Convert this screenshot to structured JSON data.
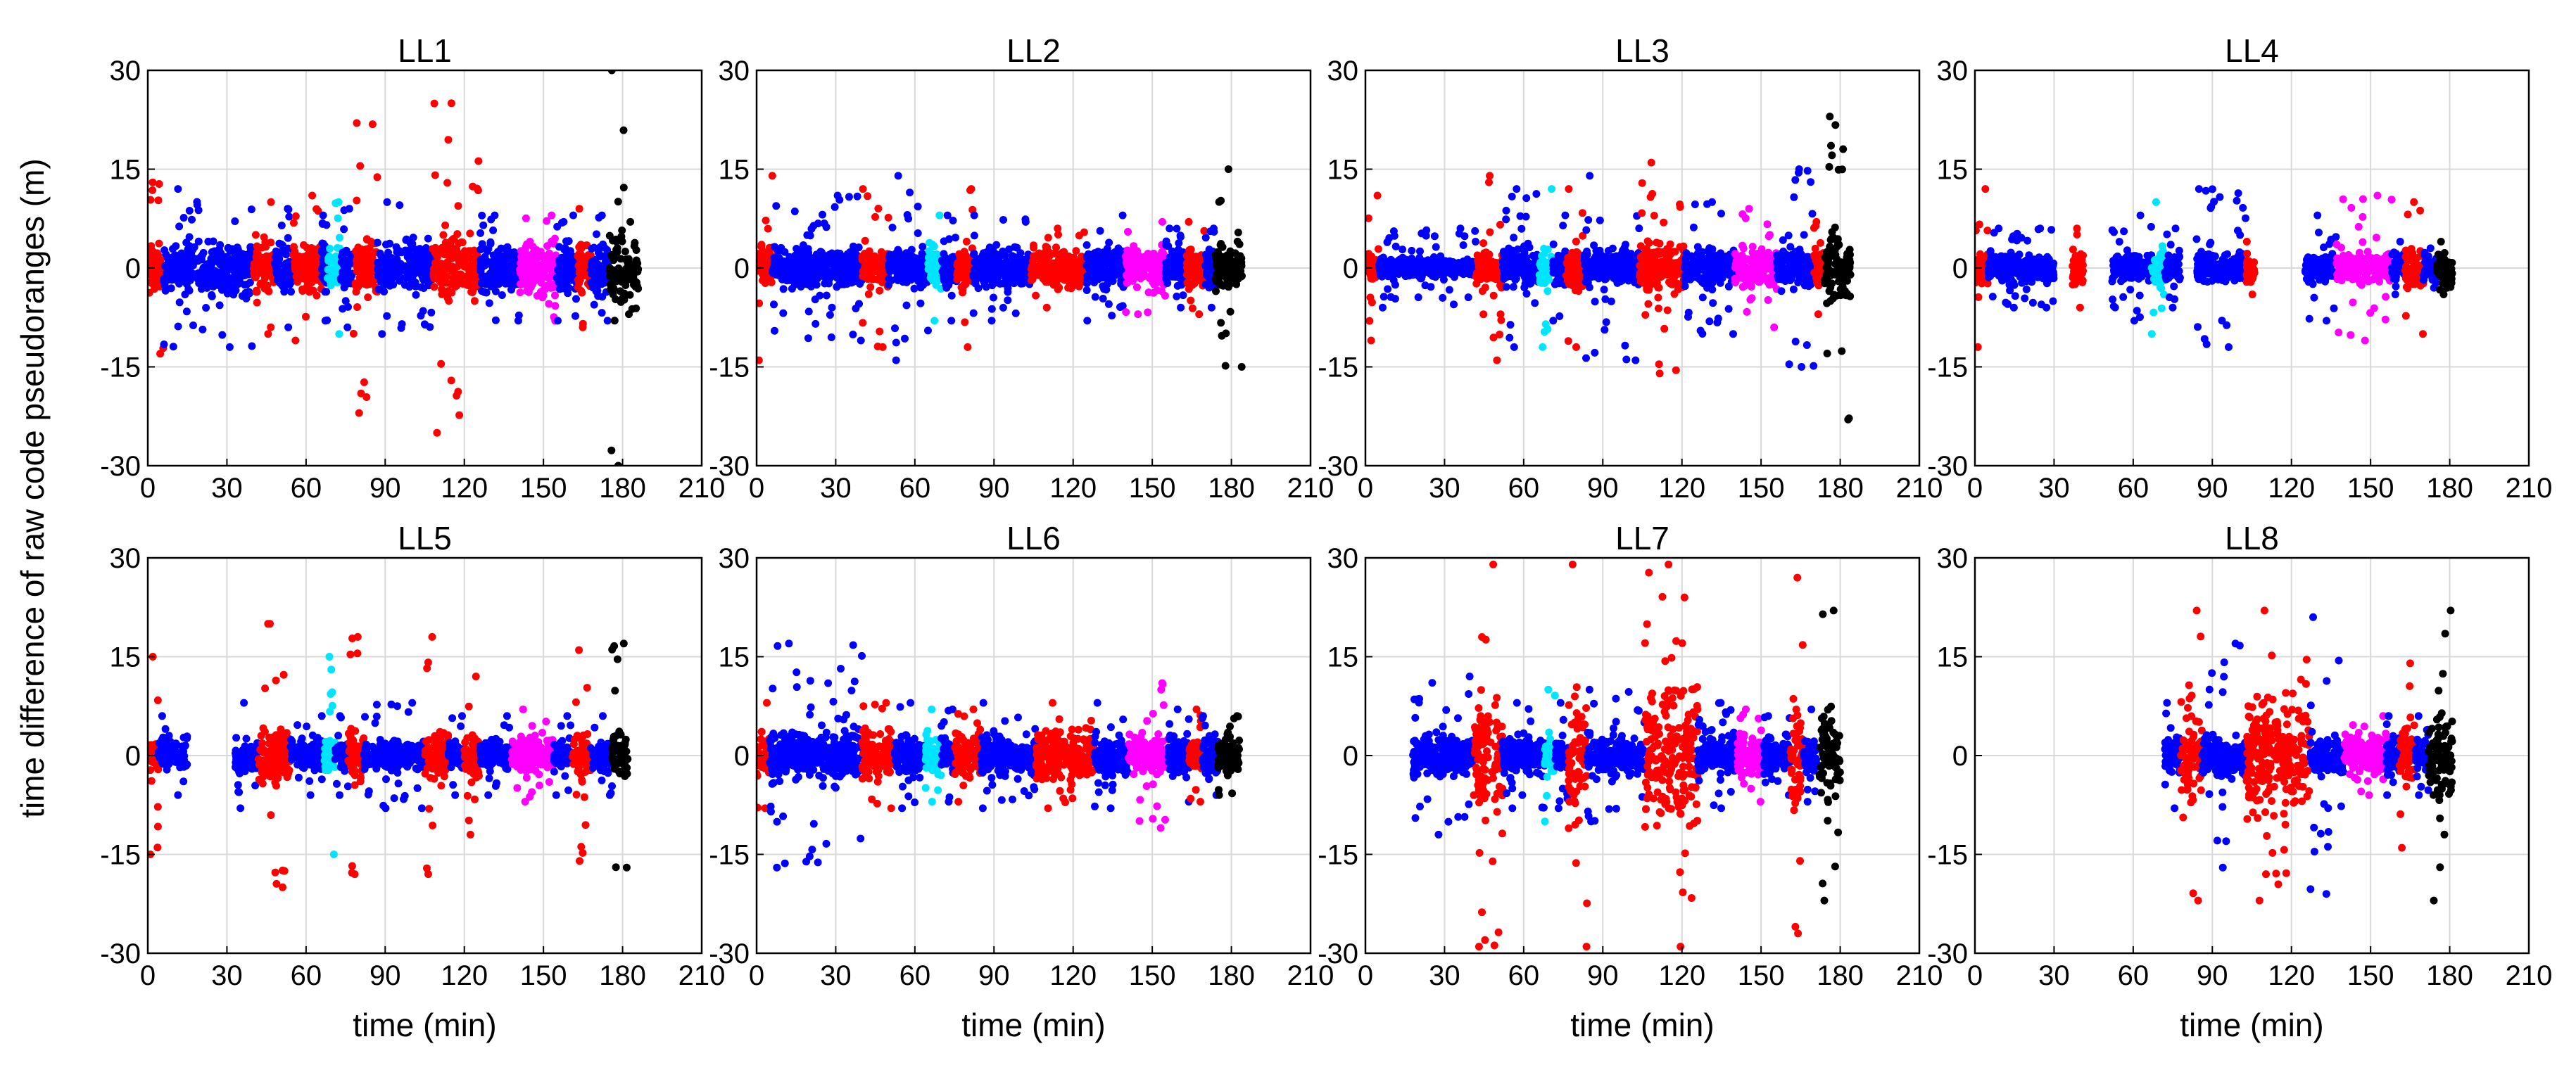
{
  "chart_data": {
    "type": "scatter",
    "ylabel": "time difference of raw code pseudoranges (m)",
    "xlabel": "time (min)",
    "xlim": [
      0,
      210
    ],
    "ylim": [
      -30,
      30
    ],
    "xticks": [
      0,
      30,
      60,
      90,
      120,
      150,
      180,
      210
    ],
    "yticks": [
      30,
      15,
      0,
      -15,
      -30
    ],
    "grid": true,
    "colors": {
      "blue": "#0000ff",
      "red": "#ff0000",
      "cyan": "#00e5ff",
      "magenta": "#ff00ff",
      "black": "#000000"
    },
    "panels": [
      {
        "title": "LL1",
        "segments": [
          {
            "start": 0,
            "end": 6,
            "color": "red",
            "core": 5,
            "spike": 13
          },
          {
            "start": 6,
            "end": 40,
            "color": "blue",
            "core": 5,
            "spike": 12
          },
          {
            "start": 40,
            "end": 48,
            "color": "red",
            "core": 5,
            "spike": 10
          },
          {
            "start": 48,
            "end": 55,
            "color": "blue",
            "core": 5,
            "spike": 9
          },
          {
            "start": 55,
            "end": 66,
            "color": "red",
            "core": 5,
            "spike": 11
          },
          {
            "start": 66,
            "end": 68,
            "color": "blue",
            "core": 5,
            "spike": 8
          },
          {
            "start": 68,
            "end": 73,
            "color": "cyan",
            "core": 4,
            "spike": 10
          },
          {
            "start": 73,
            "end": 78,
            "color": "blue",
            "core": 5,
            "spike": 9
          },
          {
            "start": 78,
            "end": 87,
            "color": "red",
            "core": 6,
            "spike": 22
          },
          {
            "start": 87,
            "end": 108,
            "color": "blue",
            "core": 5,
            "spike": 10
          },
          {
            "start": 108,
            "end": 126,
            "color": "red",
            "core": 7,
            "spike": 25
          },
          {
            "start": 126,
            "end": 141,
            "color": "blue",
            "core": 5,
            "spike": 8
          },
          {
            "start": 141,
            "end": 155,
            "color": "magenta",
            "core": 5,
            "spike": 8
          },
          {
            "start": 155,
            "end": 163,
            "color": "blue",
            "core": 5,
            "spike": 8
          },
          {
            "start": 163,
            "end": 168,
            "color": "red",
            "core": 5,
            "spike": 9
          },
          {
            "start": 168,
            "end": 175,
            "color": "blue",
            "core": 5,
            "spike": 8
          },
          {
            "start": 175,
            "end": 181,
            "color": "black",
            "core": 10,
            "spike": 30
          },
          {
            "start": 181,
            "end": 186,
            "color": "black",
            "core": 5,
            "spike": 7
          }
        ]
      },
      {
        "title": "LL2",
        "segments": [
          {
            "start": 0,
            "end": 6,
            "color": "red",
            "core": 5,
            "spike": 14
          },
          {
            "start": 6,
            "end": 40,
            "color": "blue",
            "core": 4,
            "spike": 11
          },
          {
            "start": 40,
            "end": 50,
            "color": "red",
            "core": 4,
            "spike": 12
          },
          {
            "start": 50,
            "end": 65,
            "color": "blue",
            "core": 4,
            "spike": 14
          },
          {
            "start": 65,
            "end": 70,
            "color": "cyan",
            "core": 4,
            "spike": 8
          },
          {
            "start": 70,
            "end": 76,
            "color": "blue",
            "core": 4,
            "spike": 8
          },
          {
            "start": 76,
            "end": 82,
            "color": "red",
            "core": 4,
            "spike": 12
          },
          {
            "start": 82,
            "end": 104,
            "color": "blue",
            "core": 4,
            "spike": 8
          },
          {
            "start": 104,
            "end": 125,
            "color": "red",
            "core": 4,
            "spike": 6
          },
          {
            "start": 125,
            "end": 140,
            "color": "blue",
            "core": 4,
            "spike": 8
          },
          {
            "start": 140,
            "end": 155,
            "color": "magenta",
            "core": 4,
            "spike": 7
          },
          {
            "start": 155,
            "end": 163,
            "color": "blue",
            "core": 4,
            "spike": 6
          },
          {
            "start": 163,
            "end": 170,
            "color": "red",
            "core": 4,
            "spike": 7
          },
          {
            "start": 170,
            "end": 174,
            "color": "blue",
            "core": 4,
            "spike": 6
          },
          {
            "start": 174,
            "end": 184,
            "color": "black",
            "core": 5,
            "spike": 15
          }
        ]
      },
      {
        "title": "LL3",
        "segments": [
          {
            "start": 0,
            "end": 5,
            "color": "red",
            "core": 3,
            "spike": 11
          },
          {
            "start": 5,
            "end": 42,
            "color": "blue",
            "core": 2,
            "spike": 6
          },
          {
            "start": 42,
            "end": 52,
            "color": "red",
            "core": 4,
            "spike": 14
          },
          {
            "start": 52,
            "end": 66,
            "color": "blue",
            "core": 4,
            "spike": 12
          },
          {
            "start": 66,
            "end": 71,
            "color": "cyan",
            "core": 4,
            "spike": 12
          },
          {
            "start": 71,
            "end": 76,
            "color": "blue",
            "core": 4,
            "spike": 8
          },
          {
            "start": 76,
            "end": 83,
            "color": "red",
            "core": 5,
            "spike": 12
          },
          {
            "start": 83,
            "end": 104,
            "color": "blue",
            "core": 4,
            "spike": 14
          },
          {
            "start": 104,
            "end": 121,
            "color": "red",
            "core": 5,
            "spike": 16
          },
          {
            "start": 121,
            "end": 140,
            "color": "blue",
            "core": 4,
            "spike": 10
          },
          {
            "start": 140,
            "end": 156,
            "color": "magenta",
            "core": 4,
            "spike": 9
          },
          {
            "start": 156,
            "end": 170,
            "color": "blue",
            "core": 4,
            "spike": 15
          },
          {
            "start": 170,
            "end": 174,
            "color": "red",
            "core": 4,
            "spike": 7
          },
          {
            "start": 174,
            "end": 184,
            "color": "black",
            "core": 7,
            "spike": 23
          }
        ]
      },
      {
        "title": "LL4",
        "segments": [
          {
            "start": 0,
            "end": 5,
            "color": "red",
            "core": 4,
            "spike": 12
          },
          {
            "start": 5,
            "end": 24,
            "color": "blue",
            "core": 3,
            "spike": 6
          },
          {
            "start": 24,
            "end": 30,
            "color": "blue",
            "core": 3,
            "spike": 6
          },
          {
            "start": 37,
            "end": 41,
            "color": "red",
            "core": 3,
            "spike": 6
          },
          {
            "start": 52,
            "end": 67,
            "color": "blue",
            "core": 3,
            "spike": 8
          },
          {
            "start": 67,
            "end": 72,
            "color": "cyan",
            "core": 4,
            "spike": 10
          },
          {
            "start": 72,
            "end": 78,
            "color": "blue",
            "core": 3,
            "spike": 6
          },
          {
            "start": 84,
            "end": 103,
            "color": "blue",
            "core": 3,
            "spike": 12
          },
          {
            "start": 103,
            "end": 106,
            "color": "red",
            "core": 3,
            "spike": 4
          },
          {
            "start": 125,
            "end": 137,
            "color": "blue",
            "core": 3,
            "spike": 8
          },
          {
            "start": 137,
            "end": 158,
            "color": "magenta",
            "core": 3,
            "spike": 11
          },
          {
            "start": 158,
            "end": 163,
            "color": "blue",
            "core": 3,
            "spike": 4
          },
          {
            "start": 163,
            "end": 170,
            "color": "red",
            "core": 4,
            "spike": 10
          },
          {
            "start": 170,
            "end": 175,
            "color": "blue",
            "core": 3,
            "spike": 3
          },
          {
            "start": 175,
            "end": 181,
            "color": "black",
            "core": 3,
            "spike": 4
          }
        ]
      },
      {
        "title": "LL5",
        "segments": [
          {
            "start": 0,
            "end": 4,
            "color": "red",
            "core": 3,
            "spike": 15
          },
          {
            "start": 4,
            "end": 15,
            "color": "blue",
            "core": 3,
            "spike": 6
          },
          {
            "start": 33,
            "end": 42,
            "color": "blue",
            "core": 3,
            "spike": 8
          },
          {
            "start": 42,
            "end": 54,
            "color": "red",
            "core": 6,
            "spike": 20
          },
          {
            "start": 54,
            "end": 67,
            "color": "blue",
            "core": 3,
            "spike": 6
          },
          {
            "start": 67,
            "end": 71,
            "color": "cyan",
            "core": 3,
            "spike": 15
          },
          {
            "start": 71,
            "end": 76,
            "color": "blue",
            "core": 3,
            "spike": 6
          },
          {
            "start": 76,
            "end": 82,
            "color": "red",
            "core": 5,
            "spike": 18
          },
          {
            "start": 82,
            "end": 105,
            "color": "blue",
            "core": 3,
            "spike": 8
          },
          {
            "start": 105,
            "end": 114,
            "color": "red",
            "core": 5,
            "spike": 18
          },
          {
            "start": 114,
            "end": 120,
            "color": "blue",
            "core": 3,
            "spike": 6
          },
          {
            "start": 120,
            "end": 126,
            "color": "red",
            "core": 5,
            "spike": 12
          },
          {
            "start": 126,
            "end": 138,
            "color": "blue",
            "core": 3,
            "spike": 6
          },
          {
            "start": 138,
            "end": 154,
            "color": "magenta",
            "core": 4,
            "spike": 7
          },
          {
            "start": 154,
            "end": 161,
            "color": "blue",
            "core": 3,
            "spike": 6
          },
          {
            "start": 161,
            "end": 168,
            "color": "red",
            "core": 5,
            "spike": 16
          },
          {
            "start": 168,
            "end": 176,
            "color": "blue",
            "core": 3,
            "spike": 6
          },
          {
            "start": 176,
            "end": 182,
            "color": "black",
            "core": 5,
            "spike": 17
          }
        ]
      },
      {
        "title": "LL6",
        "segments": [
          {
            "start": 0,
            "end": 5,
            "color": "red",
            "core": 4,
            "spike": 8
          },
          {
            "start": 5,
            "end": 40,
            "color": "blue",
            "core": 5,
            "spike": 17
          },
          {
            "start": 40,
            "end": 52,
            "color": "red",
            "core": 5,
            "spike": 8
          },
          {
            "start": 52,
            "end": 64,
            "color": "blue",
            "core": 4,
            "spike": 8
          },
          {
            "start": 64,
            "end": 70,
            "color": "cyan",
            "core": 4,
            "spike": 7
          },
          {
            "start": 70,
            "end": 75,
            "color": "blue",
            "core": 4,
            "spike": 7
          },
          {
            "start": 75,
            "end": 85,
            "color": "red",
            "core": 5,
            "spike": 7
          },
          {
            "start": 85,
            "end": 106,
            "color": "blue",
            "core": 4,
            "spike": 8
          },
          {
            "start": 106,
            "end": 128,
            "color": "red",
            "core": 5,
            "spike": 8
          },
          {
            "start": 128,
            "end": 141,
            "color": "blue",
            "core": 4,
            "spike": 8
          },
          {
            "start": 141,
            "end": 156,
            "color": "magenta",
            "core": 4,
            "spike": 11
          },
          {
            "start": 156,
            "end": 164,
            "color": "blue",
            "core": 4,
            "spike": 7
          },
          {
            "start": 164,
            "end": 169,
            "color": "red",
            "core": 4,
            "spike": 7
          },
          {
            "start": 169,
            "end": 175,
            "color": "blue",
            "core": 4,
            "spike": 6
          },
          {
            "start": 175,
            "end": 183,
            "color": "black",
            "core": 4,
            "spike": 6
          }
        ]
      },
      {
        "title": "LL7",
        "segments": [
          {
            "start": 18,
            "end": 41,
            "color": "blue",
            "core": 4,
            "spike": 12
          },
          {
            "start": 41,
            "end": 52,
            "color": "red",
            "core": 15,
            "spike": 29
          },
          {
            "start": 52,
            "end": 68,
            "color": "blue",
            "core": 4,
            "spike": 8
          },
          {
            "start": 68,
            "end": 72,
            "color": "cyan",
            "core": 4,
            "spike": 10
          },
          {
            "start": 72,
            "end": 77,
            "color": "blue",
            "core": 4,
            "spike": 8
          },
          {
            "start": 77,
            "end": 84,
            "color": "red",
            "core": 14,
            "spike": 29
          },
          {
            "start": 84,
            "end": 106,
            "color": "blue",
            "core": 4,
            "spike": 10
          },
          {
            "start": 106,
            "end": 126,
            "color": "red",
            "core": 16,
            "spike": 29
          },
          {
            "start": 126,
            "end": 141,
            "color": "blue",
            "core": 4,
            "spike": 8
          },
          {
            "start": 141,
            "end": 151,
            "color": "magenta",
            "core": 4,
            "spike": 7
          },
          {
            "start": 151,
            "end": 161,
            "color": "blue",
            "core": 4,
            "spike": 6
          },
          {
            "start": 161,
            "end": 166,
            "color": "red",
            "core": 12,
            "spike": 27
          },
          {
            "start": 166,
            "end": 172,
            "color": "blue",
            "core": 4,
            "spike": 7
          },
          {
            "start": 172,
            "end": 180,
            "color": "black",
            "core": 9,
            "spike": 22
          }
        ]
      },
      {
        "title": "LL8",
        "segments": [
          {
            "start": 72,
            "end": 78,
            "color": "blue",
            "core": 4,
            "spike": 8
          },
          {
            "start": 78,
            "end": 86,
            "color": "red",
            "core": 10,
            "spike": 22
          },
          {
            "start": 86,
            "end": 103,
            "color": "blue",
            "core": 4,
            "spike": 17
          },
          {
            "start": 103,
            "end": 127,
            "color": "red",
            "core": 12,
            "spike": 22
          },
          {
            "start": 127,
            "end": 140,
            "color": "blue",
            "core": 4,
            "spike": 21
          },
          {
            "start": 140,
            "end": 156,
            "color": "magenta",
            "core": 4,
            "spike": 6
          },
          {
            "start": 156,
            "end": 161,
            "color": "blue",
            "core": 4,
            "spike": 6
          },
          {
            "start": 161,
            "end": 167,
            "color": "red",
            "core": 8,
            "spike": 14
          },
          {
            "start": 167,
            "end": 172,
            "color": "blue",
            "core": 4,
            "spike": 6
          },
          {
            "start": 172,
            "end": 181,
            "color": "black",
            "core": 9,
            "spike": 22
          }
        ]
      }
    ]
  }
}
